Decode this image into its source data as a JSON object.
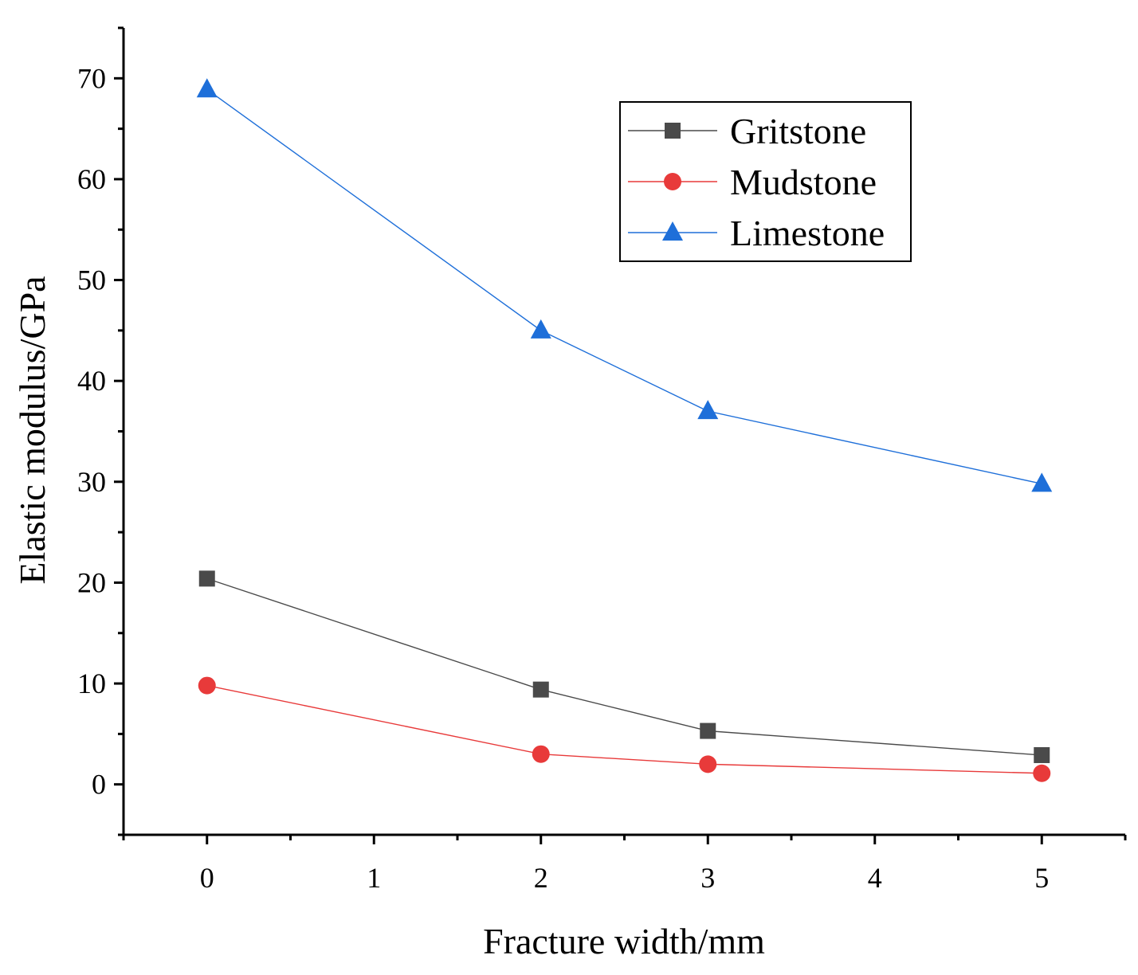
{
  "chart_data": {
    "type": "line",
    "xlabel": "Fracture width/mm",
    "ylabel": "Elastic modulus/GPa",
    "xlim": [
      -0.5,
      5.5
    ],
    "ylim": [
      -5,
      75
    ],
    "x_ticks": [
      "0",
      "1",
      "2",
      "3",
      "4",
      "5"
    ],
    "y_ticks": [
      "0",
      "10",
      "20",
      "30",
      "40",
      "50",
      "60",
      "70"
    ],
    "legend_position": "top-right",
    "series": [
      {
        "name": "Gritstone",
        "color": "#4a4a4a",
        "marker": "square",
        "x": [
          0,
          2,
          3,
          5
        ],
        "values": [
          20.4,
          9.4,
          5.3,
          2.9
        ]
      },
      {
        "name": "Mudstone",
        "color": "#e83a3a",
        "marker": "circle",
        "x": [
          0,
          2,
          3,
          5
        ],
        "values": [
          9.8,
          3.0,
          2.0,
          1.1
        ]
      },
      {
        "name": "Limestone",
        "color": "#1e6fd9",
        "marker": "triangle",
        "x": [
          0,
          2,
          3,
          5
        ],
        "values": [
          68.9,
          45.0,
          37.0,
          29.8
        ]
      }
    ]
  }
}
